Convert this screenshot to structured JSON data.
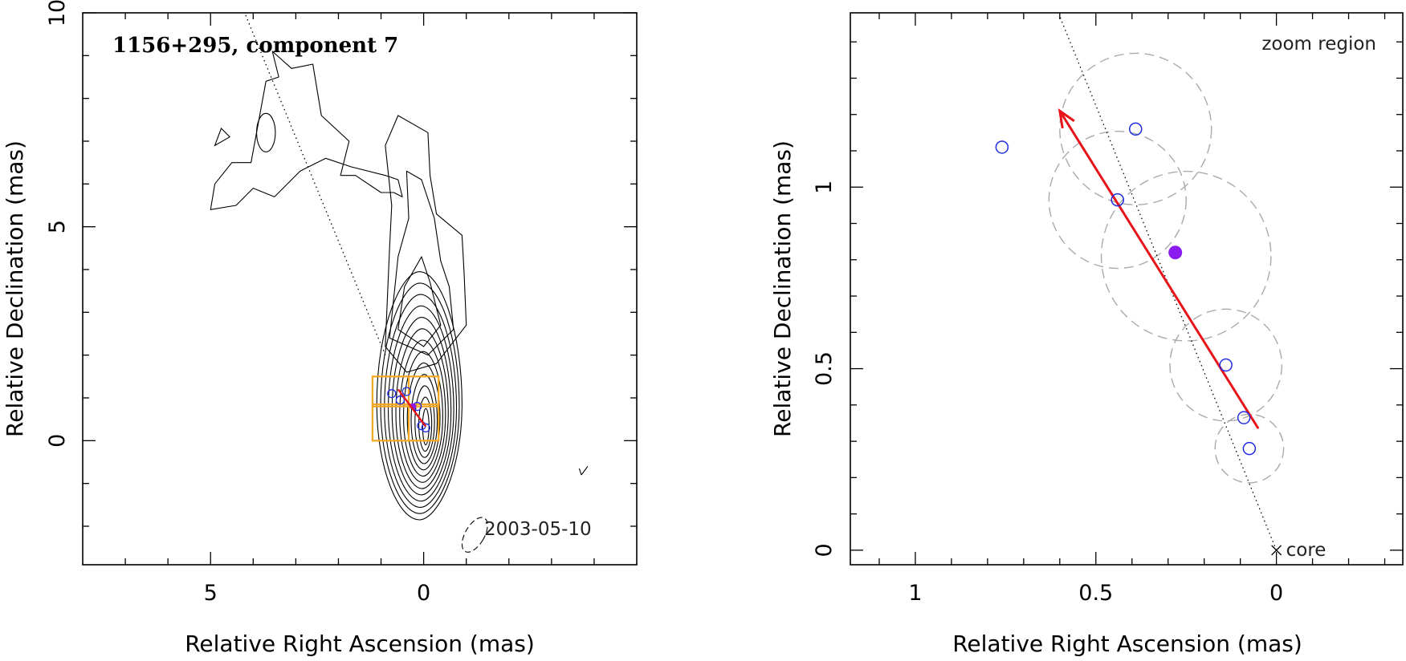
{
  "chart_data": [
    {
      "type": "contour",
      "title": "1156+295, component 7",
      "date_label": "2003-05-10",
      "xlabel": "Relative Right Ascension (mas)",
      "ylabel": "Relative Declination (mas)",
      "xlim": [
        8,
        -5
      ],
      "ylim": [
        -2.9,
        10
      ],
      "x_ticks": [
        "5",
        "0"
      ],
      "y_ticks": [
        "10",
        "5",
        "0"
      ],
      "contour_levels": 13,
      "jet_direction_line": {
        "from": [
          0.9,
          2.0
        ],
        "to": [
          4.2,
          10.0
        ],
        "style": "dotted"
      },
      "component_positions": [
        {
          "x": 0.75,
          "y": 1.1
        },
        {
          "x": 0.4,
          "y": 1.15
        },
        {
          "x": 0.55,
          "y": 0.95
        },
        {
          "x": 0.15,
          "y": 0.8
        },
        {
          "x": 0.05,
          "y": 0.35
        },
        {
          "x": -0.05,
          "y": 0.3
        }
      ],
      "motion_vector": {
        "from": [
          -0.05,
          0.33
        ],
        "to": [
          0.6,
          1.2
        ],
        "color": "#e8141a"
      },
      "zoom_boxes": [
        {
          "x": [
            1.2,
            -0.35
          ],
          "y": [
            0.8,
            1.5
          ]
        },
        {
          "x": [
            1.2,
            -0.35
          ],
          "y": [
            0.0,
            0.85
          ]
        }
      ],
      "box_color": "#f5a623",
      "beam": {
        "x": -1.2,
        "y": -2.2,
        "major": 0.9,
        "minor": 0.45
      }
    },
    {
      "type": "scatter",
      "label": "zoom region",
      "core_label": "core",
      "xlabel": "Relative Right Ascension (mas)",
      "ylabel": "Relative Declination (mas)",
      "xlim": [
        1.18,
        -0.35
      ],
      "ylim": [
        -0.04,
        1.48
      ],
      "x_ticks": [
        "1",
        "0.5",
        "0"
      ],
      "y_ticks": [
        "1",
        "0.5",
        "0"
      ],
      "points": [
        {
          "x": 0.76,
          "y": 1.11
        },
        {
          "x": 0.39,
          "y": 1.16
        },
        {
          "x": 0.44,
          "y": 0.965
        },
        {
          "x": 0.14,
          "y": 0.51
        },
        {
          "x": 0.09,
          "y": 0.365
        },
        {
          "x": 0.075,
          "y": 0.28
        }
      ],
      "mean_position": {
        "x": 0.28,
        "y": 0.82
      },
      "mean_color": "#8a1cf0",
      "error_circles": [
        {
          "x": 0.39,
          "y": 1.16,
          "r": 0.21
        },
        {
          "x": 0.44,
          "y": 0.965,
          "r": 0.19
        },
        {
          "x": 0.25,
          "y": 0.81,
          "r": 0.235
        },
        {
          "x": 0.14,
          "y": 0.51,
          "r": 0.155
        },
        {
          "x": 0.075,
          "y": 0.28,
          "r": 0.095
        }
      ],
      "motion_vector": {
        "from": [
          0.05,
          0.335
        ],
        "to": [
          0.6,
          1.21
        ],
        "color": "#e8141a"
      },
      "core": {
        "x": 0,
        "y": 0
      },
      "direction_line": {
        "from": [
          0.0,
          0.0
        ],
        "to": [
          0.6,
          1.47
        ],
        "style": "dotted"
      },
      "point_color": "#1f2de0",
      "circle_color": "#aaaaaa"
    }
  ]
}
